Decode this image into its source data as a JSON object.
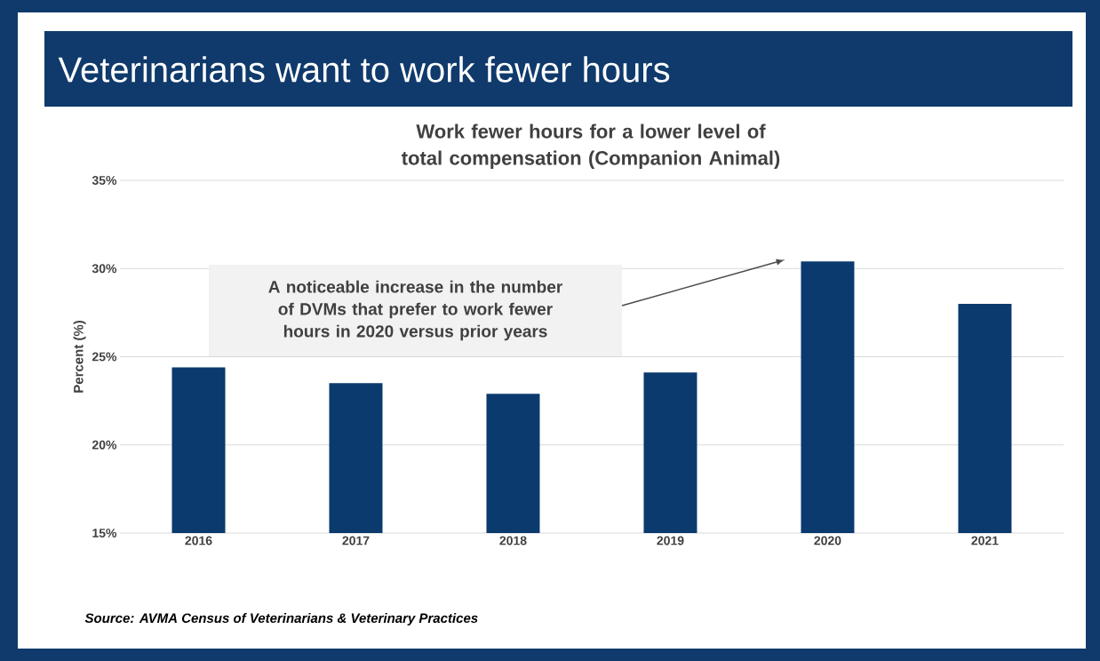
{
  "chart_data": {
    "type": "bar",
    "title": "Veterinarians want to work fewer hours",
    "subtitle": "Work fewer hours for a lower level of total compensation (Companion Animal)",
    "ylabel": "Percent (%)",
    "categories": [
      "2016",
      "2017",
      "2018",
      "2019",
      "2020",
      "2021"
    ],
    "values": [
      24.4,
      23.5,
      22.9,
      24.1,
      30.4,
      28.0
    ],
    "color": "#0b3a6e",
    "ylim": [
      15,
      35
    ],
    "yticks": [
      {
        "value": 15,
        "label": "15%"
      },
      {
        "value": 20,
        "label": "20%"
      },
      {
        "value": 25,
        "label": "25%"
      },
      {
        "value": 30,
        "label": "30%"
      },
      {
        "value": 35,
        "label": "35%"
      }
    ],
    "grid": "y",
    "annotations": [
      "A noticeable increase in the number of DVMs that prefer to work fewer hours in 2020 versus prior years",
      "Source: AVMA Census of Veterinarians & Veterinary Practices"
    ]
  }
}
